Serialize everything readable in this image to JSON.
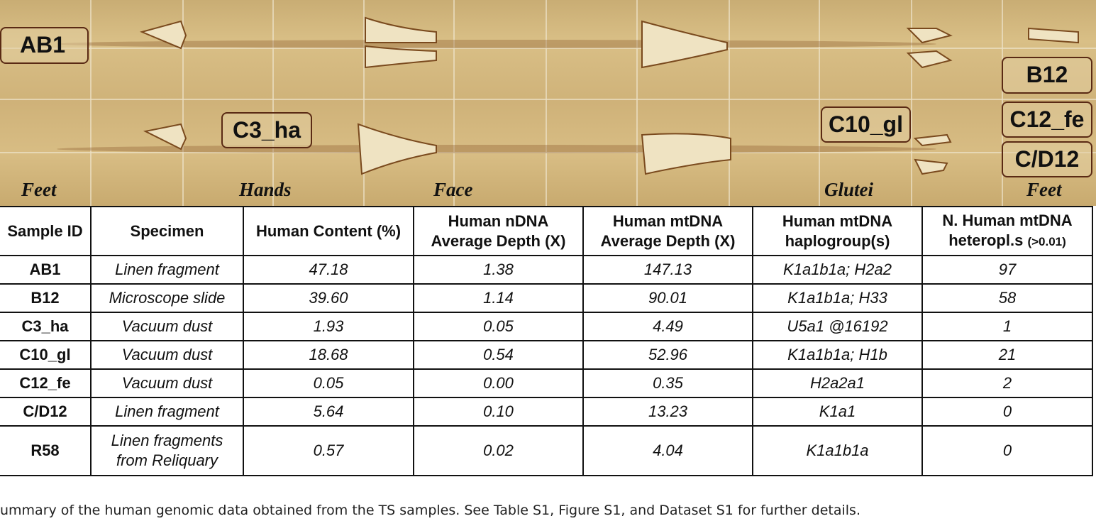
{
  "image": {
    "sample_labels": [
      "AB1",
      "C3_ha",
      "C10_gl",
      "B12",
      "C12_fe",
      "C/D12"
    ],
    "region_labels": [
      "Feet",
      "Hands",
      "Face",
      "Glutei",
      "Feet"
    ]
  },
  "table": {
    "header": [
      "Sample ID",
      "Specimen",
      "Human Content (%)",
      "Human nDNA Average Depth (X)",
      "Human mtDNA Average Depth (X)",
      "Human mtDNA haplogroup(s)",
      {
        "text": "N. Human mtDNA heteropl.s",
        "note": "(>0.01)"
      }
    ],
    "rows": [
      [
        "AB1",
        "Linen fragment",
        "47.18",
        "1.38",
        "147.13",
        "K1a1b1a; H2a2",
        "97"
      ],
      [
        "B12",
        "Microscope slide",
        "39.60",
        "1.14",
        "90.01",
        "K1a1b1a; H33",
        "58"
      ],
      [
        "C3_ha",
        "Vacuum dust",
        "1.93",
        "0.05",
        "4.49",
        "U5a1 @16192",
        "1"
      ],
      [
        "C10_gl",
        "Vacuum dust",
        "18.68",
        "0.54",
        "52.96",
        "K1a1b1a; H1b",
        "21"
      ],
      [
        "C12_fe",
        "Vacuum dust",
        "0.05",
        "0.00",
        "0.35",
        "H2a2a1",
        "2"
      ],
      [
        "C/D12",
        "Linen fragment",
        "5.64",
        "0.10",
        "13.23",
        "K1a1",
        "0"
      ],
      [
        "R58",
        "Linen fragments from Reliquary",
        "0.57",
        "0.02",
        "4.04",
        "K1a1b1a",
        "0"
      ]
    ]
  },
  "caption": "ummary of the human genomic data obtained from the TS samples. See Table S1, Figure S1, and Dataset S1 for further details."
}
